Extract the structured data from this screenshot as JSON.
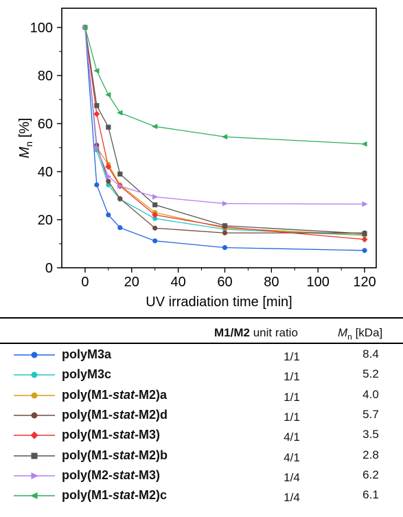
{
  "chart_data": {
    "type": "line",
    "xlabel": "UV irradiation time [min]",
    "ylabel_main": "M",
    "ylabel_sub": "n",
    "ylabel_unit": " [%]",
    "xlim": [
      -10,
      125
    ],
    "ylim": [
      0,
      108
    ],
    "xticks": [
      0,
      20,
      40,
      60,
      80,
      100,
      120
    ],
    "yticks": [
      0,
      20,
      40,
      60,
      80,
      100
    ],
    "grid": false,
    "series": [
      {
        "name": "polyM3a",
        "color": "#2266e0",
        "marker": "circle",
        "x": [
          0,
          5,
          10,
          15,
          30,
          60,
          120
        ],
        "y": [
          100,
          34.5,
          22,
          16.7,
          11.2,
          8.4,
          7.2
        ]
      },
      {
        "name": "polyM3c",
        "color": "#22c7c0",
        "marker": "circle",
        "x": [
          0,
          5,
          10,
          15,
          30,
          60,
          120
        ],
        "y": [
          100,
          49,
          34.5,
          28.5,
          20.5,
          16,
          13.5
        ]
      },
      {
        "name": "poly(M1-stat-M2)a",
        "color": "#d6a017",
        "marker": "circle",
        "x": [
          0,
          5,
          10,
          15,
          30,
          60,
          120
        ],
        "y": [
          100,
          50,
          43,
          34.5,
          23,
          16.5,
          13.7
        ]
      },
      {
        "name": "poly(M1-stat-M2)d",
        "color": "#744a3c",
        "marker": "circle",
        "x": [
          0,
          5,
          10,
          15,
          30,
          60,
          120
        ],
        "y": [
          100,
          51,
          36,
          28.8,
          16.5,
          14.5,
          14.5
        ]
      },
      {
        "name": "poly(M1-stat-M3)",
        "color": "#ee3333",
        "marker": "diamond",
        "x": [
          0,
          5,
          10,
          15,
          30,
          60,
          120
        ],
        "y": [
          100,
          64,
          42,
          34,
          22,
          17,
          11.8
        ]
      },
      {
        "name": "poly(M1-stat-M2)b",
        "color": "#555555",
        "marker": "square",
        "x": [
          0,
          5,
          10,
          15,
          30,
          60,
          120
        ],
        "y": [
          100,
          67.5,
          58.5,
          39,
          26.2,
          17.5,
          14.2
        ]
      },
      {
        "name": "poly(M2-stat-M3)",
        "color": "#b57ff0",
        "marker": "triangle-right",
        "x": [
          0,
          5,
          10,
          15,
          30,
          60,
          120
        ],
        "y": [
          100,
          50,
          38,
          34,
          29.5,
          26.7,
          26.5
        ]
      },
      {
        "name": "poly(M1-stat-M2)c",
        "color": "#2fae5c",
        "marker": "triangle-left",
        "x": [
          0,
          5,
          10,
          15,
          30,
          60,
          120
        ],
        "y": [
          100,
          82,
          72,
          64.5,
          58.8,
          54.5,
          51.5
        ]
      }
    ]
  },
  "legend": {
    "header_ratio_bold": "M1/M2",
    "header_ratio_rest": " unit ratio",
    "header_mn_main": "M",
    "header_mn_sub": "n",
    "header_mn_unit": " [kDa]",
    "rows": [
      {
        "name_parts": [
          "polyM3a"
        ],
        "ratio": "1/1",
        "mn": "8.4"
      },
      {
        "name_parts": [
          "polyM3c"
        ],
        "ratio": "1/1",
        "mn": "5.2"
      },
      {
        "name_parts": [
          "poly(M1-",
          "stat",
          "-M2)a"
        ],
        "ratio": "1/1",
        "mn": "4.0"
      },
      {
        "name_parts": [
          "poly(M1-",
          "stat",
          "-M2)d"
        ],
        "ratio": "1/1",
        "mn": "5.7"
      },
      {
        "name_parts": [
          "poly(M1-",
          "stat",
          "-M3)"
        ],
        "ratio": "4/1",
        "mn": "3.5"
      },
      {
        "name_parts": [
          "poly(M1-",
          "stat",
          "-M2)b"
        ],
        "ratio": "4/1",
        "mn": "2.8"
      },
      {
        "name_parts": [
          "poly(M2-",
          "stat",
          "-M3)"
        ],
        "ratio": "1/4",
        "mn": "6.2"
      },
      {
        "name_parts": [
          "poly(M1-",
          "stat",
          "-M2)c"
        ],
        "ratio": "1/4",
        "mn": "6.1"
      }
    ]
  }
}
